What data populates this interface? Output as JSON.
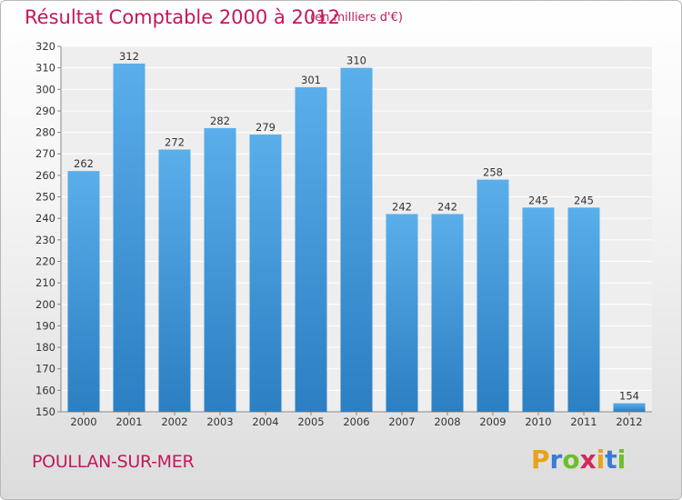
{
  "title": "Résultat Comptable 2000 à 2012",
  "subtitle": "(en milliers d'€)",
  "city": "POULLAN-SUR-MER",
  "logo": {
    "letters": [
      "P",
      "r",
      "o",
      "x",
      "i",
      "t",
      "i"
    ],
    "colors": [
      "#e8a317",
      "#3a7bd5",
      "#6cbf2a",
      "#d6285a",
      "#e8a317",
      "#3a7bd5",
      "#6cbf2a"
    ]
  },
  "colors": {
    "accent": "#c2185b",
    "bar_top": "#5aaeea",
    "bar_bottom": "#2b7fc2"
  },
  "chart_data": {
    "type": "bar",
    "categories": [
      "2000",
      "2001",
      "2002",
      "2003",
      "2004",
      "2005",
      "2006",
      "2007",
      "2008",
      "2009",
      "2010",
      "2011",
      "2012"
    ],
    "values": [
      262,
      312,
      272,
      282,
      279,
      301,
      310,
      242,
      242,
      258,
      245,
      245,
      154
    ],
    "title": "Résultat Comptable 2000 à 2012",
    "xlabel": "",
    "ylabel": "",
    "ylim": [
      150,
      320
    ],
    "yticks": [
      150,
      160,
      170,
      180,
      190,
      200,
      210,
      220,
      230,
      240,
      250,
      260,
      270,
      280,
      290,
      300,
      310,
      320
    ],
    "grid": true
  }
}
